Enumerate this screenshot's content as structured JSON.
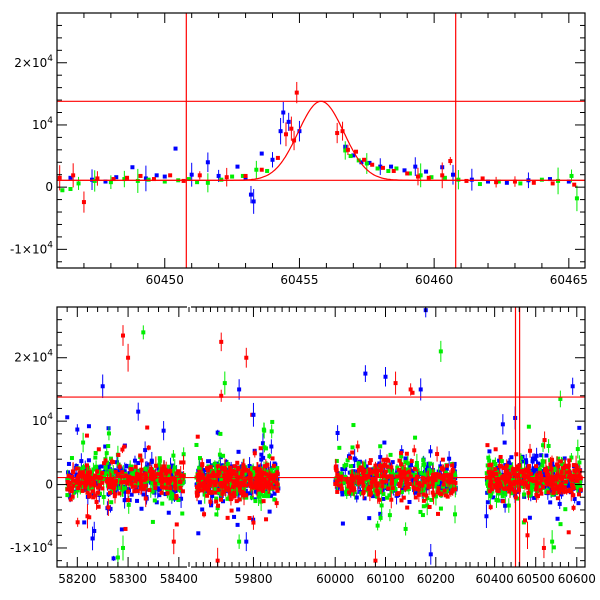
{
  "chart_data": [
    {
      "type": "scatter",
      "title": "",
      "xlabel": "",
      "ylabel": "",
      "xlim": [
        60446,
        60465.6
      ],
      "ylim": [
        -13000,
        28000
      ],
      "x_ticks": [
        60450,
        60455,
        60460,
        60465
      ],
      "x_tick_labels": [
        "60450",
        "60455",
        "60460",
        "60465"
      ],
      "y_ticks": [
        -10000,
        0,
        10000,
        20000
      ],
      "y_tick_labels": [
        {
          "mant": "-1×10",
          "exp": "4"
        },
        {
          "mant": "0",
          "exp": ""
        },
        {
          "mant": "10",
          "exp": "4"
        },
        {
          "mant": "2×10",
          "exp": "4"
        }
      ],
      "grid": false,
      "legend": "none",
      "vertical_lines_x": [
        60450.8,
        60460.8
      ],
      "horizontal_lines_y": [
        13800,
        1100
      ],
      "model_curve": {
        "type": "gaussian-bump",
        "peak_x": 60455.8,
        "peak_y": 13800,
        "baseline_y": 1100,
        "sigma_days": 0.85,
        "color": "#ff0000"
      },
      "series": [
        {
          "color": "#0000ff",
          "points": [
            [
              60446.5,
              1500
            ],
            [
              60447.3,
              1200
            ],
            [
              60447.8,
              900
            ],
            [
              60448.2,
              1600
            ],
            [
              60448.8,
              3200
            ],
            [
              60449.3,
              1400
            ],
            [
              60449.7,
              1900
            ],
            [
              60450.0,
              1700
            ],
            [
              60450.4,
              6200
            ],
            [
              60451.0,
              2000
            ],
            [
              60451.6,
              4000
            ],
            [
              60452.0,
              1800
            ],
            [
              60452.7,
              3300
            ],
            [
              60453.0,
              1500
            ],
            [
              60453.2,
              -1200
            ],
            [
              60453.3,
              -2300
            ],
            [
              60453.6,
              5400
            ],
            [
              60454.0,
              4400
            ],
            [
              60454.3,
              9000
            ],
            [
              60454.4,
              12000
            ],
            [
              60454.6,
              10500
            ],
            [
              60455.0,
              9000
            ],
            [
              60456.7,
              6500
            ],
            [
              60457.0,
              5100
            ],
            [
              60457.3,
              4000
            ],
            [
              60457.6,
              3900
            ],
            [
              60458.0,
              3300
            ],
            [
              60458.4,
              3300
            ],
            [
              60458.9,
              2700
            ],
            [
              60459.3,
              3300
            ],
            [
              60459.7,
              2500
            ],
            [
              60460.3,
              3200
            ],
            [
              60460.7,
              2000
            ],
            [
              60461.4,
              1200
            ],
            [
              60462.0,
              900
            ],
            [
              60462.7,
              700
            ],
            [
              60463.5,
              1100
            ],
            [
              60464.3,
              1300
            ],
            [
              60465.0,
              900
            ]
          ]
        },
        {
          "color": "#00ee00",
          "points": [
            [
              60446.2,
              -500
            ],
            [
              60446.5,
              -300
            ],
            [
              60446.8,
              600
            ],
            [
              60447.4,
              1000
            ],
            [
              60448.0,
              800
            ],
            [
              60448.5,
              1300
            ],
            [
              60449.0,
              1000
            ],
            [
              60449.4,
              1200
            ],
            [
              60450.0,
              900
            ],
            [
              60450.5,
              1100
            ],
            [
              60450.9,
              1300
            ],
            [
              60451.2,
              800
            ],
            [
              60451.6,
              700
            ],
            [
              60452.1,
              1200
            ],
            [
              60452.5,
              1700
            ],
            [
              60452.9,
              1800
            ],
            [
              60453.4,
              2800
            ],
            [
              60453.8,
              2600
            ],
            [
              60456.7,
              5900
            ],
            [
              60456.9,
              5000
            ],
            [
              60457.2,
              4300
            ],
            [
              60457.5,
              3800
            ],
            [
              60457.9,
              3000
            ],
            [
              60458.3,
              2600
            ],
            [
              60458.6,
              3000
            ],
            [
              60459.1,
              2200
            ],
            [
              60459.5,
              1900
            ],
            [
              60459.9,
              1600
            ],
            [
              60460.4,
              1500
            ],
            [
              60460.9,
              1200
            ],
            [
              60461.7,
              500
            ],
            [
              60462.4,
              900
            ],
            [
              60463.2,
              600
            ],
            [
              60464.0,
              1200
            ],
            [
              60464.6,
              1000
            ],
            [
              60465.1,
              1800
            ],
            [
              60465.3,
              -1800
            ]
          ]
        },
        {
          "color": "#ff0000",
          "points": [
            [
              60446.1,
              1500
            ],
            [
              60446.6,
              1900
            ],
            [
              60447.0,
              -2400
            ],
            [
              60447.5,
              1400
            ],
            [
              60448.1,
              1300
            ],
            [
              60448.6,
              1500
            ],
            [
              60449.1,
              1800
            ],
            [
              60449.6,
              1300
            ],
            [
              60450.2,
              1900
            ],
            [
              60450.7,
              1000
            ],
            [
              60451.3,
              1900
            ],
            [
              60452.3,
              1600
            ],
            [
              60453.0,
              1800
            ],
            [
              60453.6,
              2800
            ],
            [
              60454.2,
              4700
            ],
            [
              60454.5,
              8500
            ],
            [
              60454.7,
              9400
            ],
            [
              60454.8,
              7500
            ],
            [
              60454.9,
              15200
            ],
            [
              60456.4,
              8700
            ],
            [
              60456.6,
              9000
            ],
            [
              60456.8,
              6000
            ],
            [
              60457.1,
              5700
            ],
            [
              60457.4,
              4400
            ],
            [
              60457.7,
              3600
            ],
            [
              60458.1,
              3100
            ],
            [
              60458.5,
              2600
            ],
            [
              60459.0,
              2200
            ],
            [
              60459.4,
              1700
            ],
            [
              60459.8,
              1500
            ],
            [
              60460.3,
              1900
            ],
            [
              60460.6,
              4200
            ],
            [
              60461.2,
              1000
            ],
            [
              60461.8,
              1400
            ],
            [
              60462.3,
              800
            ],
            [
              60463.0,
              900
            ],
            [
              60463.7,
              700
            ],
            [
              60464.4,
              600
            ],
            [
              60465.2,
              400
            ]
          ]
        }
      ]
    },
    {
      "type": "scatter",
      "title": "",
      "xlabel": "",
      "ylabel": "",
      "broken_x_axis": true,
      "ylim": [
        -13000,
        28000
      ],
      "segments": [
        {
          "xlim": [
            58160,
            58420
          ],
          "ticks": [
            58200,
            58300,
            58400
          ],
          "tick_labels": [
            "58200",
            "58300",
            "58400"
          ]
        },
        {
          "xlim": [
            59620,
            59930
          ],
          "ticks": [
            59800
          ],
          "tick_labels": [
            "59800"
          ]
        },
        {
          "xlim": [
            59930,
            60268
          ],
          "ticks": [
            60000,
            60100,
            60200
          ],
          "tick_labels": [
            "60000",
            "60100",
            "60200"
          ]
        },
        {
          "xlim": [
            60340,
            60620
          ],
          "ticks": [
            60400,
            60500,
            60600
          ],
          "tick_labels": [
            "60400",
            "60500",
            "60600"
          ]
        }
      ],
      "y_ticks": [
        -10000,
        0,
        10000,
        20000
      ],
      "y_tick_labels": [
        {
          "mant": "-1×10",
          "exp": "4"
        },
        {
          "mant": "0",
          "exp": ""
        },
        {
          "mant": "10",
          "exp": "4"
        },
        {
          "mant": "2×10",
          "exp": "4"
        }
      ],
      "grid": false,
      "legend": "none",
      "vertical_lines_x": [
        60450.8,
        60460.8
      ],
      "horizontal_lines_y": [
        13800,
        1100
      ],
      "data_ranges": [
        [
          58180,
          58410
        ],
        [
          59640,
          59870
        ],
        [
          60000,
          60240
        ],
        [
          60380,
          60610
        ]
      ],
      "scatter_std": 1300,
      "outliers": [
        {
          "color": "#ff0000",
          "points": [
            [
              58290,
              23500
            ],
            [
              58300,
              20000
            ],
            [
              59710,
              22500
            ],
            [
              59780,
              20000
            ],
            [
              59710,
              14000
            ],
            [
              60120,
              16000
            ],
            [
              60150,
              15000
            ],
            [
              58390,
              -9000
            ],
            [
              59700,
              -12000
            ],
            [
              60080,
              -12000
            ],
            [
              60480,
              -8000
            ],
            [
              60520,
              -10000
            ],
            [
              58220,
              -5000
            ],
            [
              59800,
              -6000
            ]
          ]
        },
        {
          "color": "#0000ff",
          "points": [
            [
              58250,
              15500
            ],
            [
              58320,
              11500
            ],
            [
              58370,
              8500
            ],
            [
              59760,
              15000
            ],
            [
              59800,
              11000
            ],
            [
              60060,
              17500
            ],
            [
              60100,
              17000
            ],
            [
              60170,
              15000
            ],
            [
              60180,
              27500
            ],
            [
              60420,
              9500
            ],
            [
              60450,
              10500
            ],
            [
              60590,
              15500
            ],
            [
              58230,
              -8500
            ],
            [
              59780,
              -9000
            ],
            [
              60190,
              -11000
            ],
            [
              60380,
              -5000
            ],
            [
              59850,
              6000
            ]
          ]
        },
        {
          "color": "#00ee00",
          "points": [
            [
              58330,
              24000
            ],
            [
              59720,
              16000
            ],
            [
              59830,
              8500
            ],
            [
              60210,
              21000
            ],
            [
              60560,
              13500
            ],
            [
              58290,
              -10000
            ],
            [
              58280,
              -11500
            ],
            [
              59760,
              -9000
            ],
            [
              60140,
              -7000
            ],
            [
              60540,
              -9000
            ]
          ]
        }
      ]
    }
  ]
}
